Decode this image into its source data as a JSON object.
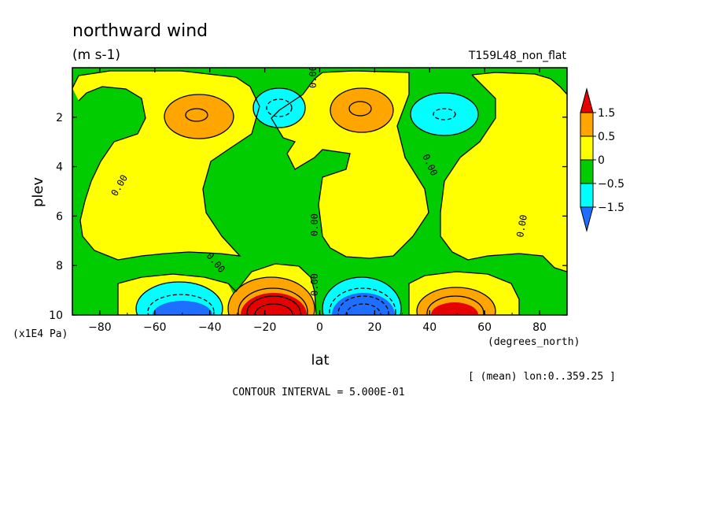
{
  "header": {
    "title": "northward wind",
    "units": "(m s-1)",
    "run": "T159L48_non_flat"
  },
  "footer": {
    "mean_note": "[ (mean) lon:0..359.25 ]",
    "contour_interval": "CONTOUR INTERVAL = 5.000E-01"
  },
  "colors": {
    "red": "#e60000",
    "orange": "#ffa500",
    "yellow": "#ffff00",
    "green": "#00cc00",
    "cyan": "#00ffff",
    "blue": "#1e6eff",
    "line": "#000000"
  },
  "chart_data": {
    "type": "contour",
    "x": {
      "label": "lat",
      "units": "(degrees_north)",
      "range": [
        -90,
        90
      ],
      "ticks": [
        -80,
        -60,
        -40,
        -20,
        0,
        20,
        40,
        60,
        80
      ]
    },
    "y": {
      "label": "plev",
      "units": "(x1E4 Pa)",
      "range": [
        0,
        10
      ],
      "ticks": [
        2,
        4,
        6,
        8,
        10
      ]
    },
    "colorbar": {
      "levels": [
        1.5,
        0.5,
        0,
        -0.5,
        -1.5
      ],
      "labels": [
        "1.5",
        "0.5",
        "0",
        "−0.5",
        "−1.5"
      ]
    },
    "contour_labels": [
      "0.00",
      "0.00",
      "0.00",
      "0.00",
      "0.00",
      "0.00",
      "0.00",
      "0.00"
    ],
    "features": [
      {
        "kind": "max",
        "lat": -45,
        "plev": 1.9
      },
      {
        "kind": "min",
        "lat": -15,
        "plev": 1.9
      },
      {
        "kind": "max",
        "lat": 12,
        "plev": 1.9
      },
      {
        "kind": "min",
        "lat": 44,
        "plev": 1.9
      },
      {
        "kind": "min",
        "lat": -48,
        "plev": 9.8
      },
      {
        "kind": "max",
        "lat": -18,
        "plev": 9.8
      },
      {
        "kind": "min",
        "lat": 18,
        "plev": 9.8
      },
      {
        "kind": "max",
        "lat": 46,
        "plev": 9.8
      }
    ]
  }
}
